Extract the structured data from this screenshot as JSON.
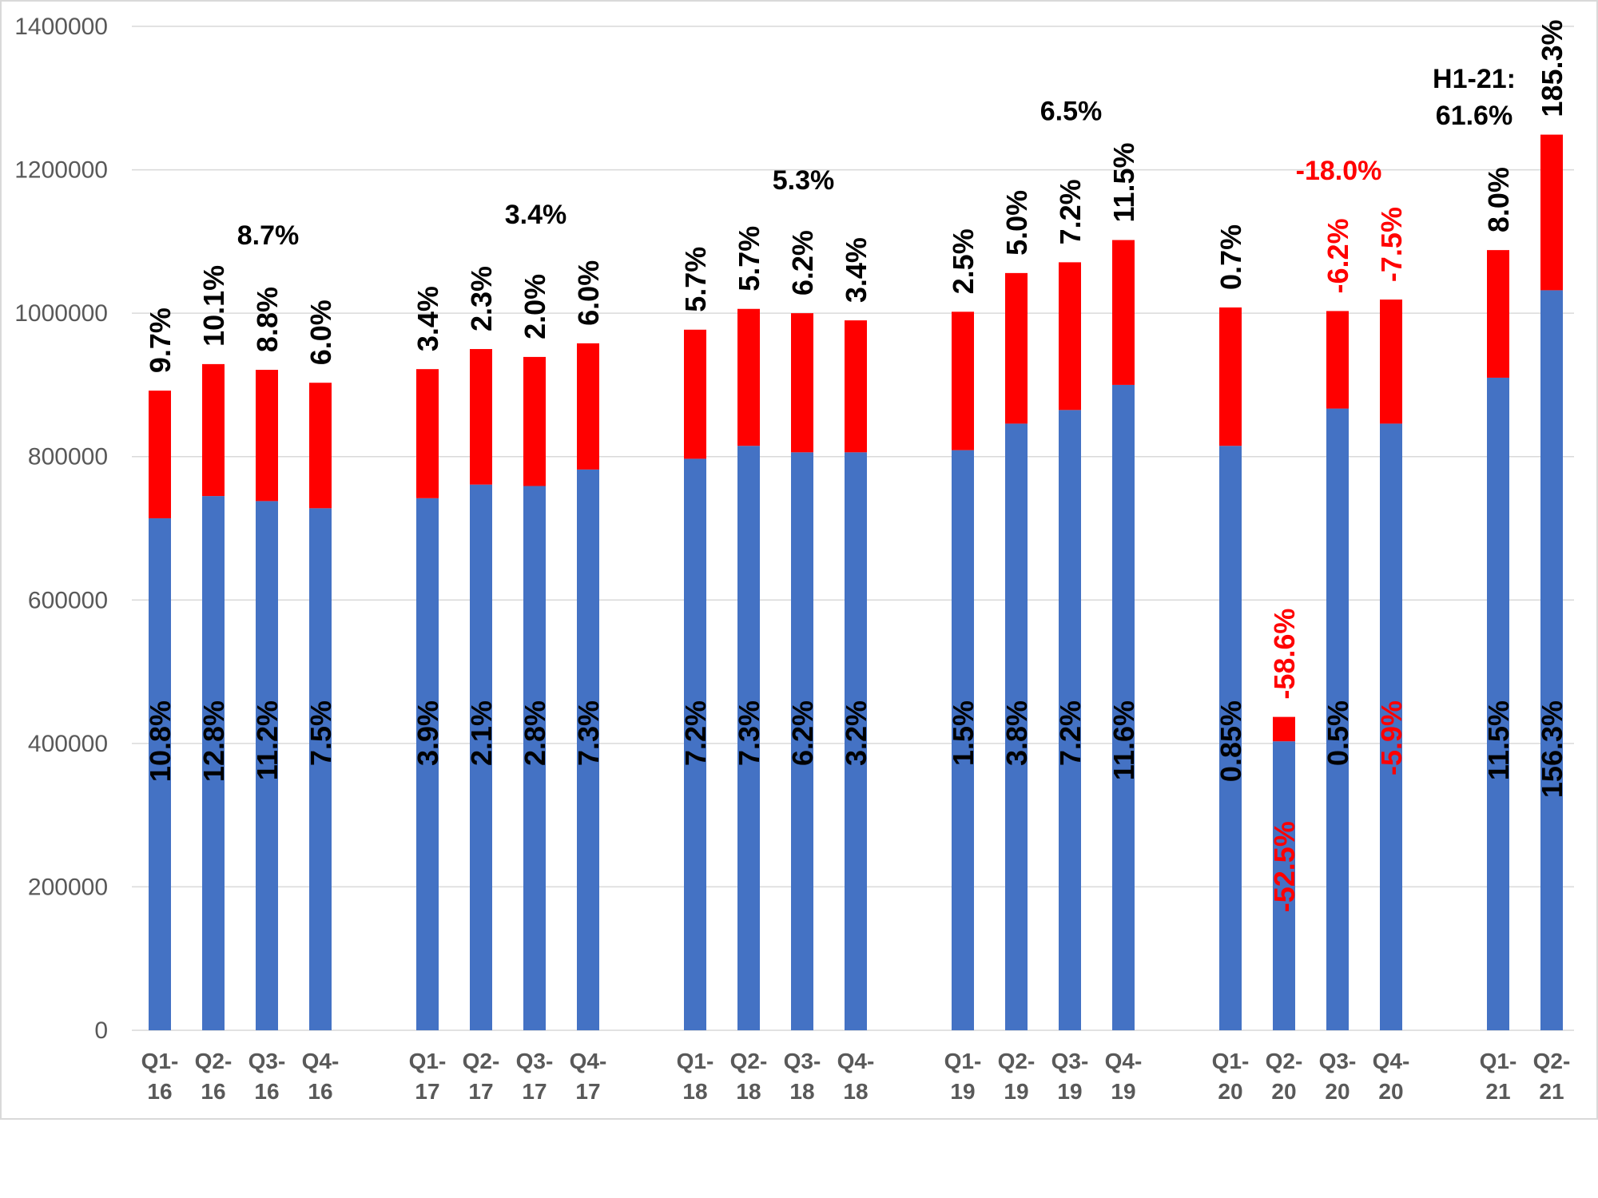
{
  "chart_data": {
    "type": "bar",
    "stacked": true,
    "ylim": [
      0,
      1400000
    ],
    "yticks": [
      "0",
      "200000",
      "400000",
      "600000",
      "800000",
      "1000000",
      "1200000",
      "1400000"
    ],
    "grid": true,
    "colors": {
      "lower": "#4472c4",
      "upper": "#ff0000",
      "positive_text": "#000000",
      "negative_text": "#ff0000"
    },
    "groups": [
      {
        "summary": [
          "8.7%"
        ],
        "bars": [
          {
            "label": [
              "Q1-",
              "16"
            ],
            "lower": 714000,
            "total": 892000,
            "lower_pct": "10.8%",
            "upper_pct": "9.7%"
          },
          {
            "label": [
              "Q2-",
              "16"
            ],
            "lower": 745000,
            "total": 929000,
            "lower_pct": "12.8%",
            "upper_pct": "10.1%"
          },
          {
            "label": [
              "Q3-",
              "16"
            ],
            "lower": 738000,
            "total": 921000,
            "lower_pct": "11.2%",
            "upper_pct": "8.8%"
          },
          {
            "label": [
              "Q4-",
              "16"
            ],
            "lower": 728000,
            "total": 903000,
            "lower_pct": "7.5%",
            "upper_pct": "6.0%"
          }
        ]
      },
      {
        "summary": [
          "3.4%"
        ],
        "bars": [
          {
            "label": [
              "Q1-",
              "17"
            ],
            "lower": 742000,
            "total": 922000,
            "lower_pct": "3.9%",
            "upper_pct": "3.4%"
          },
          {
            "label": [
              "Q2-",
              "17"
            ],
            "lower": 761000,
            "total": 950000,
            "lower_pct": "2.1%",
            "upper_pct": "2.3%"
          },
          {
            "label": [
              "Q3-",
              "17"
            ],
            "lower": 759000,
            "total": 939000,
            "lower_pct": "2.8%",
            "upper_pct": "2.0%"
          },
          {
            "label": [
              "Q4-",
              "17"
            ],
            "lower": 782000,
            "total": 958000,
            "lower_pct": "7.3%",
            "upper_pct": "6.0%"
          }
        ]
      },
      {
        "summary": [
          "5.3%"
        ],
        "bars": [
          {
            "label": [
              "Q1-",
              "18"
            ],
            "lower": 797000,
            "total": 977000,
            "lower_pct": "7.2%",
            "upper_pct": "5.7%"
          },
          {
            "label": [
              "Q2-",
              "18"
            ],
            "lower": 815000,
            "total": 1006000,
            "lower_pct": "7.3%",
            "upper_pct": "5.7%"
          },
          {
            "label": [
              "Q3-",
              "18"
            ],
            "lower": 806000,
            "total": 1000000,
            "lower_pct": "6.2%",
            "upper_pct": "6.2%"
          },
          {
            "label": [
              "Q4-",
              "18"
            ],
            "lower": 806000,
            "total": 990000,
            "lower_pct": "3.2%",
            "upper_pct": "3.4%"
          }
        ]
      },
      {
        "summary": [
          "6.5%"
        ],
        "bars": [
          {
            "label": [
              "Q1-",
              "19"
            ],
            "lower": 809000,
            "total": 1002000,
            "lower_pct": "1.5%",
            "upper_pct": "2.5%"
          },
          {
            "label": [
              "Q2-",
              "19"
            ],
            "lower": 846000,
            "total": 1056000,
            "lower_pct": "3.8%",
            "upper_pct": "5.0%"
          },
          {
            "label": [
              "Q3-",
              "19"
            ],
            "lower": 865000,
            "total": 1071000,
            "lower_pct": "7.2%",
            "upper_pct": "7.2%"
          },
          {
            "label": [
              "Q4-",
              "19"
            ],
            "lower": 900000,
            "total": 1102000,
            "lower_pct": "11.6%",
            "upper_pct": "11.5%"
          }
        ]
      },
      {
        "summary": [
          "-18.0%"
        ],
        "bars": [
          {
            "label": [
              "Q1-",
              "20"
            ],
            "lower": 815000,
            "total": 1008000,
            "lower_pct": "0.85%",
            "upper_pct": "0.7%"
          },
          {
            "label": [
              "Q2-",
              "20"
            ],
            "lower": 403000,
            "total": 437000,
            "lower_pct": "-52.5%",
            "upper_pct": "-58.6%"
          },
          {
            "label": [
              "Q3-",
              "20"
            ],
            "lower": 867000,
            "total": 1003000,
            "lower_pct": "0.5%",
            "upper_pct": "-6.2%"
          },
          {
            "label": [
              "Q4-",
              "20"
            ],
            "lower": 846000,
            "total": 1019000,
            "lower_pct": "-5.9%",
            "upper_pct": "-7.5%"
          }
        ]
      },
      {
        "summary": [
          "H1-21:",
          "61.6%"
        ],
        "bars": [
          {
            "label": [
              "Q1-",
              "21"
            ],
            "lower": 910000,
            "total": 1088000,
            "lower_pct": "11.5%",
            "upper_pct": "8.0%"
          },
          {
            "label": [
              "Q2-",
              "21"
            ],
            "lower": 1032000,
            "total": 1249000,
            "lower_pct": "156.3%",
            "upper_pct": "185.3%"
          }
        ]
      }
    ]
  }
}
